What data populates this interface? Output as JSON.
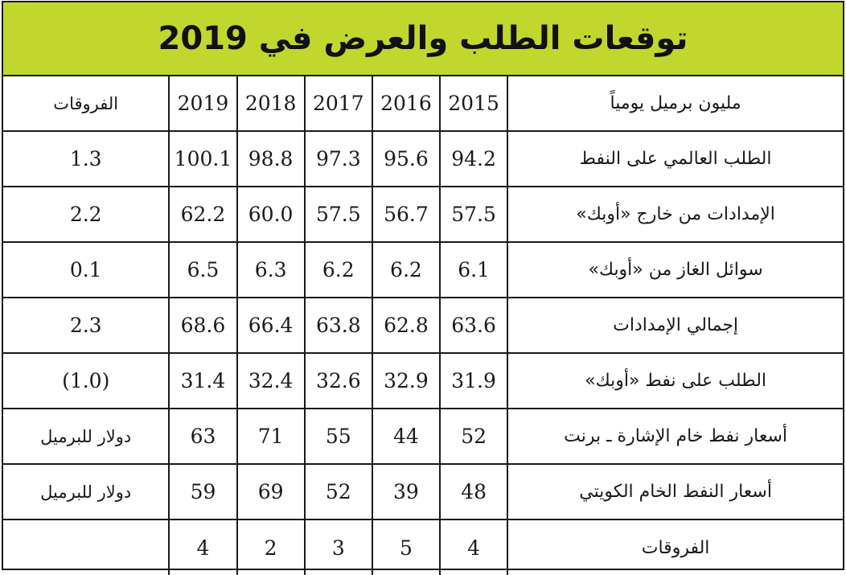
{
  "title": "توقعات الطلب والعرض في 2019",
  "colors": {
    "title_background": "#c1d72e",
    "border": "#1a1a1a",
    "text": "#1a1a1a"
  },
  "header": {
    "label": "مليون برميل يومياً",
    "years": [
      "2015",
      "2016",
      "2017",
      "2018",
      "2019"
    ],
    "diff": "الفروقات"
  },
  "rows": [
    {
      "label": "الطلب العالمي على النفط",
      "values": [
        "94.2",
        "95.6",
        "97.3",
        "98.8",
        "100.1"
      ],
      "diff": "1.3"
    },
    {
      "label": "الإمدادات من خارج «أوبك»",
      "values": [
        "57.5",
        "56.7",
        "57.5",
        "60.0",
        "62.2"
      ],
      "diff": "2.2"
    },
    {
      "label": "سوائل الغاز من «أوبك»",
      "values": [
        "6.1",
        "6.2",
        "6.2",
        "6.3",
        "6.5"
      ],
      "diff": "0.1"
    },
    {
      "label": "إجمالي الإمدادات",
      "values": [
        "63.6",
        "62.8",
        "63.8",
        "66.4",
        "68.6"
      ],
      "diff": "2.3"
    },
    {
      "label": "الطلب على نفط «أوبك»",
      "values": [
        "31.9",
        "32.9",
        "32.6",
        "32.4",
        "31.4"
      ],
      "diff": "(1.0)"
    },
    {
      "label": "أسعار نفط خام الإشارة ـ برنت",
      "values": [
        "52",
        "44",
        "55",
        "71",
        "63"
      ],
      "diff": "دولار للبرميل"
    },
    {
      "label": "أسعار النفط الخام الكويتي",
      "values": [
        "48",
        "39",
        "52",
        "69",
        "59"
      ],
      "diff": "دولار للبرميل"
    },
    {
      "label": "الفروقات",
      "values": [
        "4",
        "5",
        "3",
        "2",
        "4"
      ],
      "diff": ""
    }
  ]
}
